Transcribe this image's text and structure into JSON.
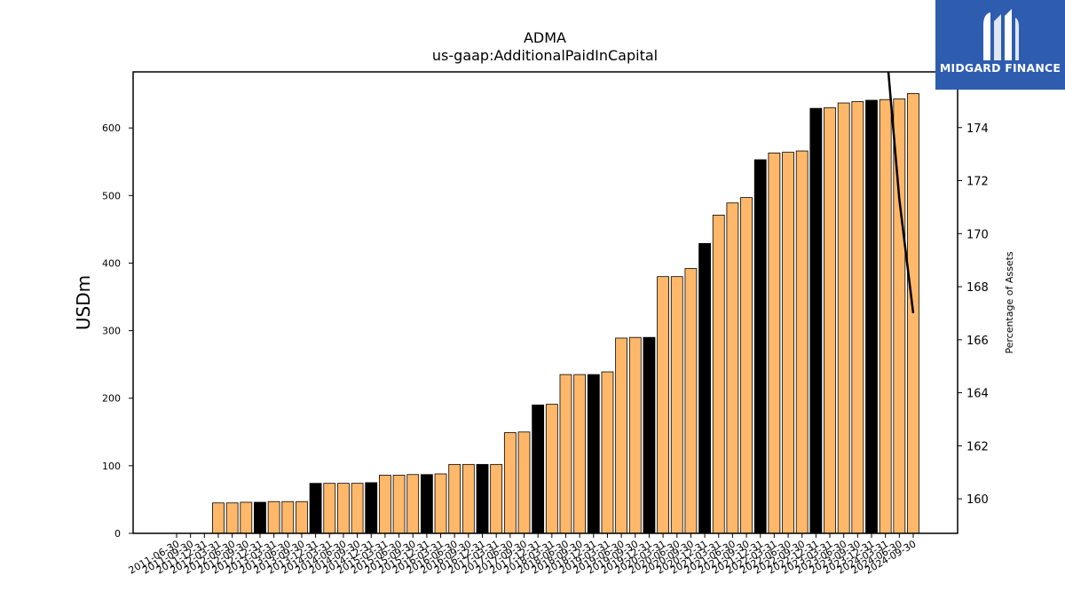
{
  "chart_data": {
    "type": "bar",
    "title": "ADMA",
    "subtitle": "us-gaap:AdditionalPaidInCapital",
    "ylabel": "USDm",
    "ylabel_right": "Percentage of Assets",
    "ylim": [
      0,
      683
    ],
    "y_ticks": [
      0,
      100,
      200,
      300,
      400,
      500,
      600
    ],
    "ylim_right": [
      158.7,
      176.1
    ],
    "y_ticks_right": [
      160,
      162,
      164,
      166,
      168,
      170,
      172,
      174
    ],
    "categories": [
      "2011-06-30",
      "2011-09-30",
      "2011-12-31",
      "2012-03-31",
      "2012-06-30",
      "2012-09-30",
      "2012-12-31",
      "2013-03-31",
      "2013-06-30",
      "2013-09-30",
      "2013-12-31",
      "2014-03-31",
      "2014-06-30",
      "2014-09-30",
      "2014-12-31",
      "2015-03-31",
      "2015-06-30",
      "2015-09-30",
      "2015-12-31",
      "2016-03-31",
      "2016-06-30",
      "2016-09-30",
      "2016-12-31",
      "2017-03-31",
      "2017-06-30",
      "2017-09-30",
      "2017-12-31",
      "2018-03-31",
      "2018-06-30",
      "2018-09-30",
      "2018-12-31",
      "2019-03-31",
      "2019-06-30",
      "2019-09-30",
      "2019-12-31",
      "2020-03-31",
      "2020-06-30",
      "2020-09-30",
      "2020-12-31",
      "2021-03-31",
      "2021-06-30",
      "2021-09-30",
      "2021-12-31",
      "2022-03-31",
      "2022-06-30",
      "2022-09-30",
      "2022-12-31",
      "2023-03-31",
      "2023-06-30",
      "2023-09-30",
      "2023-12-31",
      "2024-03-31",
      "2024-06-30",
      "2024-09-30"
    ],
    "values": [
      0,
      0,
      0,
      45,
      45,
      46,
      46,
      47,
      47,
      47,
      74,
      74,
      74,
      74,
      75,
      86,
      86,
      87,
      87,
      88,
      102,
      102,
      102,
      102,
      149,
      150,
      190,
      191,
      235,
      235,
      235,
      239,
      289,
      290,
      290,
      380,
      380,
      392,
      429,
      471,
      489,
      497,
      553,
      563,
      564,
      566,
      629,
      630,
      637,
      639,
      641,
      642,
      643,
      651
    ],
    "highlight": [
      false,
      false,
      false,
      false,
      false,
      false,
      true,
      false,
      false,
      false,
      true,
      false,
      false,
      false,
      true,
      false,
      false,
      false,
      true,
      false,
      false,
      false,
      true,
      false,
      false,
      false,
      true,
      false,
      false,
      false,
      true,
      false,
      false,
      false,
      true,
      false,
      false,
      false,
      true,
      false,
      false,
      false,
      true,
      false,
      false,
      false,
      true,
      false,
      false,
      false,
      true,
      false,
      false,
      false
    ],
    "line_series": {
      "name": "Percentage of Assets",
      "axis": "right",
      "categories": [
        "2024-03-31",
        "2024-06-30",
        "2024-09-30"
      ],
      "values": [
        177.4,
        171.3,
        167.0
      ]
    },
    "colors": {
      "bar": "#ffb86a",
      "bar_highlight": "#000000",
      "edge": "#000000",
      "line": "#000000"
    },
    "grid": false,
    "legend": "none"
  },
  "logo": {
    "text": "MIDGARD FINANCE",
    "background": "#2e5db0"
  }
}
